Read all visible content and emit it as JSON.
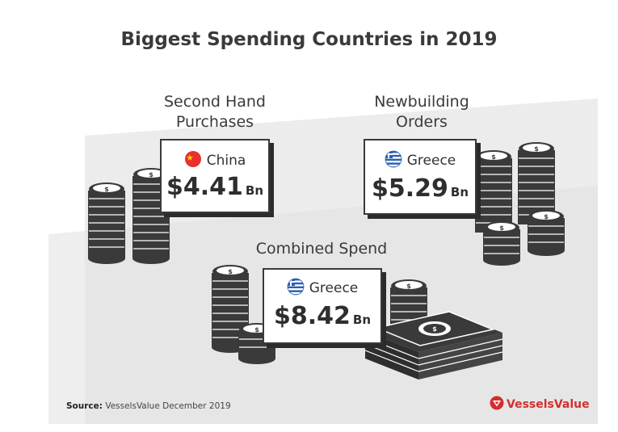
{
  "title": "Biggest Spending Countries in 2019",
  "panels": [
    {
      "heading_line1": "Second Hand",
      "heading_line2": "Purchases",
      "country": "China",
      "flag_icon": "china-flag-icon",
      "amount": "$4.41",
      "unit": "Bn"
    },
    {
      "heading_line1": "Newbuilding",
      "heading_line2": "Orders",
      "country": "Greece",
      "flag_icon": "greece-flag-icon",
      "amount": "$5.29",
      "unit": "Bn"
    },
    {
      "heading_line1": "Combined Spend",
      "country": "Greece",
      "flag_icon": "greece-flag-icon",
      "amount": "$8.42",
      "unit": "Bn"
    }
  ],
  "source": {
    "label": "Source:",
    "text": "VesselsValue December 2019"
  },
  "logo": {
    "text": "VesselsValue",
    "color": "#d32f2f"
  },
  "colors": {
    "china_red": "#e8302c",
    "greece_blue": "#2a5fb0",
    "coin": "#3a3a3a",
    "background_panel": "#ececec"
  },
  "icons": [
    "coin-stack-icon",
    "banknote-stack-icon",
    "china-flag-icon",
    "greece-flag-icon",
    "vesselsvalue-logo-icon"
  ]
}
